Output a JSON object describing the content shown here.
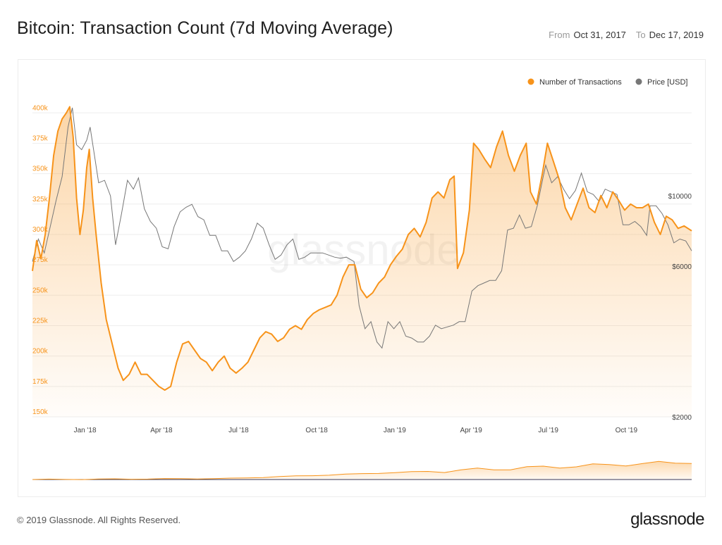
{
  "header": {
    "title": "Bitcoin: Transaction Count (7d Moving Average)",
    "from_label": "From",
    "from_value": "Oct 31, 2017",
    "to_label": "To",
    "to_value": "Dec 17, 2019"
  },
  "footer": {
    "copyright": "© 2019 Glassnode. All Rights Reserved.",
    "brand": "glassnode"
  },
  "watermark": "glassnode",
  "colors": {
    "transactions": "#f7931a",
    "price": "#777777",
    "grid": "#eeeeee",
    "tick": "#f7931a"
  },
  "chart_data": {
    "type": "line",
    "title": "Bitcoin: Transaction Count (7d Moving Average)",
    "legend_position": "top-right",
    "grid": true,
    "x_ticks": [
      "Jan '18",
      "Apr '18",
      "Jul '18",
      "Oct '18",
      "Jan '19",
      "Apr '19",
      "Jul '19",
      "Oct '19"
    ],
    "x_range": [
      "2017-10-31",
      "2019-12-17"
    ],
    "y_left": {
      "ticks": [
        150000,
        175000,
        200000,
        225000,
        250000,
        275000,
        300000,
        325000,
        350000,
        375000,
        400000
      ],
      "tick_labels": [
        "150k",
        "175k",
        "200k",
        "225k",
        "250k",
        "275k",
        "300k",
        "325k",
        "350k",
        "375k",
        "400k"
      ],
      "range": [
        150000,
        410000
      ]
    },
    "y_right": {
      "scale": "log",
      "tick_labels": [
        "$2000",
        "$6000",
        "$10000"
      ],
      "ticks": [
        2000,
        6000,
        10000
      ],
      "range": [
        2000,
        20000
      ]
    },
    "series": [
      {
        "name": "Number of Transactions",
        "axis": "left",
        "points": [
          [
            "2017-10-31",
            270000
          ],
          [
            "2017-11-05",
            295000
          ],
          [
            "2017-11-10",
            280000
          ],
          [
            "2017-11-15",
            300000
          ],
          [
            "2017-11-20",
            330000
          ],
          [
            "2017-11-25",
            365000
          ],
          [
            "2017-11-30",
            385000
          ],
          [
            "2017-12-05",
            395000
          ],
          [
            "2017-12-10",
            400000
          ],
          [
            "2017-12-14",
            405000
          ],
          [
            "2017-12-18",
            380000
          ],
          [
            "2017-12-22",
            330000
          ],
          [
            "2017-12-26",
            300000
          ],
          [
            "2017-12-30",
            320000
          ],
          [
            "2018-01-03",
            355000
          ],
          [
            "2018-01-06",
            370000
          ],
          [
            "2018-01-10",
            330000
          ],
          [
            "2018-01-14",
            300000
          ],
          [
            "2018-01-20",
            260000
          ],
          [
            "2018-01-26",
            230000
          ],
          [
            "2018-02-02",
            210000
          ],
          [
            "2018-02-09",
            190000
          ],
          [
            "2018-02-15",
            180000
          ],
          [
            "2018-02-22",
            185000
          ],
          [
            "2018-03-01",
            195000
          ],
          [
            "2018-03-08",
            185000
          ],
          [
            "2018-03-15",
            185000
          ],
          [
            "2018-03-22",
            180000
          ],
          [
            "2018-03-29",
            175000
          ],
          [
            "2018-04-05",
            172000
          ],
          [
            "2018-04-12",
            175000
          ],
          [
            "2018-04-19",
            195000
          ],
          [
            "2018-04-26",
            210000
          ],
          [
            "2018-05-03",
            212000
          ],
          [
            "2018-05-10",
            205000
          ],
          [
            "2018-05-17",
            198000
          ],
          [
            "2018-05-24",
            195000
          ],
          [
            "2018-05-31",
            188000
          ],
          [
            "2018-06-07",
            195000
          ],
          [
            "2018-06-14",
            200000
          ],
          [
            "2018-06-21",
            190000
          ],
          [
            "2018-06-28",
            186000
          ],
          [
            "2018-07-05",
            190000
          ],
          [
            "2018-07-12",
            195000
          ],
          [
            "2018-07-19",
            205000
          ],
          [
            "2018-07-26",
            215000
          ],
          [
            "2018-08-02",
            220000
          ],
          [
            "2018-08-09",
            218000
          ],
          [
            "2018-08-16",
            212000
          ],
          [
            "2018-08-23",
            215000
          ],
          [
            "2018-08-30",
            222000
          ],
          [
            "2018-09-06",
            225000
          ],
          [
            "2018-09-13",
            222000
          ],
          [
            "2018-09-20",
            230000
          ],
          [
            "2018-09-27",
            235000
          ],
          [
            "2018-10-04",
            238000
          ],
          [
            "2018-10-11",
            240000
          ],
          [
            "2018-10-18",
            242000
          ],
          [
            "2018-10-25",
            250000
          ],
          [
            "2018-11-01",
            265000
          ],
          [
            "2018-11-08",
            275000
          ],
          [
            "2018-11-15",
            275000
          ],
          [
            "2018-11-22",
            255000
          ],
          [
            "2018-11-29",
            248000
          ],
          [
            "2018-12-06",
            252000
          ],
          [
            "2018-12-13",
            260000
          ],
          [
            "2018-12-20",
            265000
          ],
          [
            "2018-12-27",
            275000
          ],
          [
            "2019-01-03",
            282000
          ],
          [
            "2019-01-10",
            288000
          ],
          [
            "2019-01-17",
            300000
          ],
          [
            "2019-01-24",
            305000
          ],
          [
            "2019-01-31",
            298000
          ],
          [
            "2019-02-07",
            310000
          ],
          [
            "2019-02-14",
            330000
          ],
          [
            "2019-02-21",
            335000
          ],
          [
            "2019-02-28",
            330000
          ],
          [
            "2019-03-07",
            345000
          ],
          [
            "2019-03-12",
            348000
          ],
          [
            "2019-03-16",
            272000
          ],
          [
            "2019-03-23",
            285000
          ],
          [
            "2019-03-30",
            320000
          ],
          [
            "2019-04-04",
            375000
          ],
          [
            "2019-04-10",
            370000
          ],
          [
            "2019-04-17",
            362000
          ],
          [
            "2019-04-24",
            355000
          ],
          [
            "2019-05-01",
            372000
          ],
          [
            "2019-05-08",
            385000
          ],
          [
            "2019-05-15",
            365000
          ],
          [
            "2019-05-22",
            352000
          ],
          [
            "2019-05-29",
            365000
          ],
          [
            "2019-06-05",
            375000
          ],
          [
            "2019-06-10",
            335000
          ],
          [
            "2019-06-17",
            325000
          ],
          [
            "2019-06-24",
            350000
          ],
          [
            "2019-06-30",
            375000
          ],
          [
            "2019-07-07",
            360000
          ],
          [
            "2019-07-14",
            345000
          ],
          [
            "2019-07-21",
            322000
          ],
          [
            "2019-07-28",
            312000
          ],
          [
            "2019-08-04",
            325000
          ],
          [
            "2019-08-11",
            338000
          ],
          [
            "2019-08-18",
            322000
          ],
          [
            "2019-08-25",
            318000
          ],
          [
            "2019-09-01",
            332000
          ],
          [
            "2019-09-08",
            322000
          ],
          [
            "2019-09-15",
            335000
          ],
          [
            "2019-09-22",
            328000
          ],
          [
            "2019-09-29",
            320000
          ],
          [
            "2019-10-06",
            325000
          ],
          [
            "2019-10-13",
            322000
          ],
          [
            "2019-10-20",
            322000
          ],
          [
            "2019-10-27",
            325000
          ],
          [
            "2019-11-03",
            310000
          ],
          [
            "2019-11-10",
            300000
          ],
          [
            "2019-11-17",
            315000
          ],
          [
            "2019-11-24",
            312000
          ],
          [
            "2019-12-01",
            305000
          ],
          [
            "2019-12-08",
            307000
          ],
          [
            "2019-12-17",
            303000
          ]
        ]
      },
      {
        "name": "Price [USD]",
        "axis": "right",
        "points": [
          [
            "2017-10-31",
            6200
          ],
          [
            "2017-11-07",
            7300
          ],
          [
            "2017-11-14",
            6600
          ],
          [
            "2017-11-21",
            8000
          ],
          [
            "2017-11-28",
            9700
          ],
          [
            "2017-12-05",
            11500
          ],
          [
            "2017-12-12",
            16500
          ],
          [
            "2017-12-17",
            19000
          ],
          [
            "2017-12-22",
            14500
          ],
          [
            "2017-12-28",
            14000
          ],
          [
            "2018-01-03",
            15000
          ],
          [
            "2018-01-07",
            16500
          ],
          [
            "2018-01-12",
            13500
          ],
          [
            "2018-01-17",
            11000
          ],
          [
            "2018-01-24",
            11200
          ],
          [
            "2018-01-31",
            10000
          ],
          [
            "2018-02-06",
            7000
          ],
          [
            "2018-02-13",
            8800
          ],
          [
            "2018-02-20",
            11200
          ],
          [
            "2018-02-27",
            10500
          ],
          [
            "2018-03-05",
            11400
          ],
          [
            "2018-03-12",
            9100
          ],
          [
            "2018-03-19",
            8300
          ],
          [
            "2018-03-26",
            7900
          ],
          [
            "2018-04-02",
            6900
          ],
          [
            "2018-04-09",
            6800
          ],
          [
            "2018-04-16",
            8000
          ],
          [
            "2018-04-23",
            8900
          ],
          [
            "2018-04-30",
            9200
          ],
          [
            "2018-05-07",
            9400
          ],
          [
            "2018-05-14",
            8600
          ],
          [
            "2018-05-21",
            8400
          ],
          [
            "2018-05-28",
            7500
          ],
          [
            "2018-06-04",
            7500
          ],
          [
            "2018-06-11",
            6700
          ],
          [
            "2018-06-18",
            6700
          ],
          [
            "2018-06-25",
            6200
          ],
          [
            "2018-07-02",
            6400
          ],
          [
            "2018-07-09",
            6700
          ],
          [
            "2018-07-16",
            7300
          ],
          [
            "2018-07-23",
            8200
          ],
          [
            "2018-07-30",
            7900
          ],
          [
            "2018-08-06",
            7000
          ],
          [
            "2018-08-13",
            6300
          ],
          [
            "2018-08-20",
            6500
          ],
          [
            "2018-08-27",
            7000
          ],
          [
            "2018-09-03",
            7300
          ],
          [
            "2018-09-10",
            6300
          ],
          [
            "2018-09-17",
            6400
          ],
          [
            "2018-09-24",
            6600
          ],
          [
            "2018-10-01",
            6600
          ],
          [
            "2018-10-08",
            6600
          ],
          [
            "2018-10-15",
            6500
          ],
          [
            "2018-10-22",
            6400
          ],
          [
            "2018-10-29",
            6350
          ],
          [
            "2018-11-05",
            6400
          ],
          [
            "2018-11-14",
            6200
          ],
          [
            "2018-11-20",
            4500
          ],
          [
            "2018-11-27",
            3800
          ],
          [
            "2018-12-04",
            4000
          ],
          [
            "2018-12-11",
            3450
          ],
          [
            "2018-12-17",
            3300
          ],
          [
            "2018-12-24",
            4000
          ],
          [
            "2018-12-31",
            3800
          ],
          [
            "2019-01-07",
            4000
          ],
          [
            "2019-01-14",
            3600
          ],
          [
            "2019-01-21",
            3550
          ],
          [
            "2019-01-28",
            3450
          ],
          [
            "2019-02-04",
            3450
          ],
          [
            "2019-02-11",
            3600
          ],
          [
            "2019-02-18",
            3900
          ],
          [
            "2019-02-25",
            3800
          ],
          [
            "2019-03-04",
            3850
          ],
          [
            "2019-03-11",
            3900
          ],
          [
            "2019-03-18",
            4000
          ],
          [
            "2019-03-25",
            4000
          ],
          [
            "2019-04-02",
            5000
          ],
          [
            "2019-04-09",
            5200
          ],
          [
            "2019-04-16",
            5300
          ],
          [
            "2019-04-23",
            5400
          ],
          [
            "2019-04-30",
            5400
          ],
          [
            "2019-05-07",
            5800
          ],
          [
            "2019-05-14",
            7800
          ],
          [
            "2019-05-21",
            7900
          ],
          [
            "2019-05-28",
            8700
          ],
          [
            "2019-06-04",
            7900
          ],
          [
            "2019-06-11",
            8000
          ],
          [
            "2019-06-18",
            9300
          ],
          [
            "2019-06-25",
            11500
          ],
          [
            "2019-06-28",
            12500
          ],
          [
            "2019-07-05",
            11000
          ],
          [
            "2019-07-12",
            11500
          ],
          [
            "2019-07-19",
            10500
          ],
          [
            "2019-07-26",
            9800
          ],
          [
            "2019-08-02",
            10400
          ],
          [
            "2019-08-09",
            11800
          ],
          [
            "2019-08-16",
            10300
          ],
          [
            "2019-08-23",
            10100
          ],
          [
            "2019-08-30",
            9600
          ],
          [
            "2019-09-06",
            10500
          ],
          [
            "2019-09-13",
            10300
          ],
          [
            "2019-09-20",
            10100
          ],
          [
            "2019-09-27",
            8100
          ],
          [
            "2019-10-04",
            8100
          ],
          [
            "2019-10-11",
            8300
          ],
          [
            "2019-10-18",
            8000
          ],
          [
            "2019-10-25",
            7500
          ],
          [
            "2019-10-29",
            9300
          ],
          [
            "2019-11-05",
            9300
          ],
          [
            "2019-11-12",
            8800
          ],
          [
            "2019-11-19",
            8100
          ],
          [
            "2019-11-26",
            7100
          ],
          [
            "2019-12-03",
            7300
          ],
          [
            "2019-12-10",
            7200
          ],
          [
            "2019-12-17",
            6700
          ]
        ]
      }
    ]
  }
}
